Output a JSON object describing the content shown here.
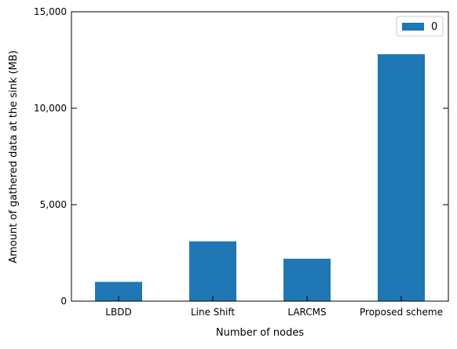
{
  "chart_data": {
    "type": "bar",
    "categories": [
      "LBDD",
      "Line Shift",
      "LARCMS",
      "Proposed scheme"
    ],
    "series": [
      {
        "name": "0",
        "values": [
          1000,
          3100,
          2200,
          12800
        ]
      }
    ],
    "title": "",
    "xlabel": "Number of nodes",
    "ylabel": "Amount of gathered data at the sink (MB)",
    "ylim": [
      0,
      15000
    ],
    "yticks": [
      0,
      5000,
      10000,
      15000
    ],
    "ytick_labels": [
      "0",
      "5,000",
      "10,000",
      "15,000"
    ],
    "grid": false,
    "legend": {
      "placement": "top-right",
      "entries": [
        "0"
      ]
    },
    "colors": {
      "bar": "#1f77b4",
      "axis": "#000000"
    }
  }
}
